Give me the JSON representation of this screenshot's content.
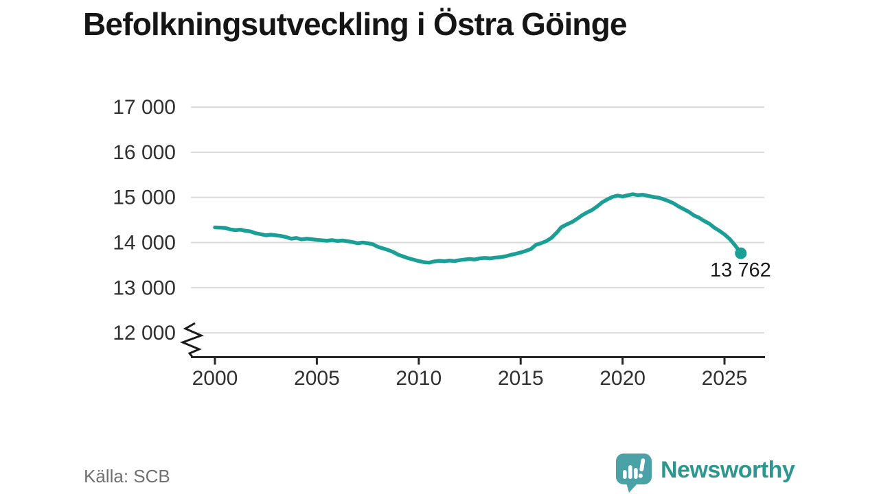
{
  "title": "Befolkningsutveckling i Östra Göinge",
  "source": "Källa: SCB",
  "branding": {
    "name": "Newsworthy",
    "icon": "newsworthy-speech-bubble-barchart-icon",
    "text_color": "#2d968e",
    "bubble_color": "#4aa1a6"
  },
  "chart_data": {
    "type": "line",
    "title": "Befolkningsutveckling i Östra Göinge",
    "xlabel": "",
    "ylabel": "",
    "x_ticks": [
      "2000",
      "2005",
      "2010",
      "2015",
      "2020",
      "2025"
    ],
    "x_tick_values": [
      2000,
      2005,
      2010,
      2015,
      2020,
      2025
    ],
    "y_ticks": [
      "17 000",
      "16 000",
      "15 000",
      "14 000",
      "13 000",
      "12 000"
    ],
    "y_tick_values": [
      17000,
      16000,
      15000,
      14000,
      13000,
      12000
    ],
    "ylim": [
      12000,
      17000
    ],
    "xlim": [
      2000,
      2026
    ],
    "axis_break_at_bottom": true,
    "grid": true,
    "legend": "none",
    "line_color": "#1b9e95",
    "grid_color": "#dadada",
    "axis_color": "#262626",
    "tick_label_color": "#303030",
    "end_label": "13 762",
    "end_value": 13762,
    "series": [
      {
        "name": "Befolkning",
        "points": [
          [
            2000.0,
            14335
          ],
          [
            2000.25,
            14330
          ],
          [
            2000.5,
            14325
          ],
          [
            2000.75,
            14290
          ],
          [
            2001.0,
            14275
          ],
          [
            2001.25,
            14285
          ],
          [
            2001.5,
            14260
          ],
          [
            2001.75,
            14245
          ],
          [
            2002.0,
            14205
          ],
          [
            2002.25,
            14185
          ],
          [
            2002.5,
            14160
          ],
          [
            2002.75,
            14175
          ],
          [
            2003.0,
            14160
          ],
          [
            2003.25,
            14145
          ],
          [
            2003.5,
            14120
          ],
          [
            2003.75,
            14085
          ],
          [
            2004.0,
            14100
          ],
          [
            2004.25,
            14070
          ],
          [
            2004.5,
            14085
          ],
          [
            2004.75,
            14075
          ],
          [
            2005.0,
            14060
          ],
          [
            2005.25,
            14050
          ],
          [
            2005.5,
            14040
          ],
          [
            2005.75,
            14055
          ],
          [
            2006.0,
            14035
          ],
          [
            2006.25,
            14045
          ],
          [
            2006.5,
            14030
          ],
          [
            2006.75,
            14010
          ],
          [
            2007.0,
            13985
          ],
          [
            2007.25,
            14000
          ],
          [
            2007.5,
            13985
          ],
          [
            2007.75,
            13960
          ],
          [
            2008.0,
            13905
          ],
          [
            2008.25,
            13870
          ],
          [
            2008.5,
            13835
          ],
          [
            2008.75,
            13790
          ],
          [
            2009.0,
            13730
          ],
          [
            2009.25,
            13690
          ],
          [
            2009.5,
            13650
          ],
          [
            2009.75,
            13620
          ],
          [
            2010.0,
            13590
          ],
          [
            2010.25,
            13565
          ],
          [
            2010.5,
            13555
          ],
          [
            2010.75,
            13580
          ],
          [
            2011.0,
            13595
          ],
          [
            2011.25,
            13585
          ],
          [
            2011.5,
            13600
          ],
          [
            2011.75,
            13590
          ],
          [
            2012.0,
            13610
          ],
          [
            2012.25,
            13625
          ],
          [
            2012.5,
            13635
          ],
          [
            2012.75,
            13625
          ],
          [
            2013.0,
            13650
          ],
          [
            2013.25,
            13660
          ],
          [
            2013.5,
            13650
          ],
          [
            2013.75,
            13665
          ],
          [
            2014.0,
            13675
          ],
          [
            2014.25,
            13695
          ],
          [
            2014.5,
            13725
          ],
          [
            2014.75,
            13750
          ],
          [
            2015.0,
            13780
          ],
          [
            2015.25,
            13815
          ],
          [
            2015.5,
            13855
          ],
          [
            2015.75,
            13950
          ],
          [
            2016.0,
            13985
          ],
          [
            2016.25,
            14030
          ],
          [
            2016.5,
            14100
          ],
          [
            2016.75,
            14210
          ],
          [
            2017.0,
            14340
          ],
          [
            2017.25,
            14400
          ],
          [
            2017.5,
            14450
          ],
          [
            2017.75,
            14520
          ],
          [
            2018.0,
            14600
          ],
          [
            2018.25,
            14665
          ],
          [
            2018.5,
            14720
          ],
          [
            2018.75,
            14800
          ],
          [
            2019.0,
            14890
          ],
          [
            2019.25,
            14955
          ],
          [
            2019.5,
            15010
          ],
          [
            2019.75,
            15040
          ],
          [
            2020.0,
            15020
          ],
          [
            2020.25,
            15045
          ],
          [
            2020.5,
            15070
          ],
          [
            2020.75,
            15050
          ],
          [
            2021.0,
            15060
          ],
          [
            2021.25,
            15035
          ],
          [
            2021.5,
            15010
          ],
          [
            2021.75,
            14995
          ],
          [
            2022.0,
            14960
          ],
          [
            2022.25,
            14920
          ],
          [
            2022.5,
            14870
          ],
          [
            2022.75,
            14800
          ],
          [
            2023.0,
            14740
          ],
          [
            2023.25,
            14680
          ],
          [
            2023.5,
            14600
          ],
          [
            2023.75,
            14550
          ],
          [
            2024.0,
            14480
          ],
          [
            2024.25,
            14420
          ],
          [
            2024.5,
            14330
          ],
          [
            2024.75,
            14260
          ],
          [
            2025.0,
            14180
          ],
          [
            2025.25,
            14080
          ],
          [
            2025.5,
            13950
          ],
          [
            2025.7,
            13830
          ],
          [
            2025.8,
            13762
          ]
        ]
      }
    ]
  }
}
